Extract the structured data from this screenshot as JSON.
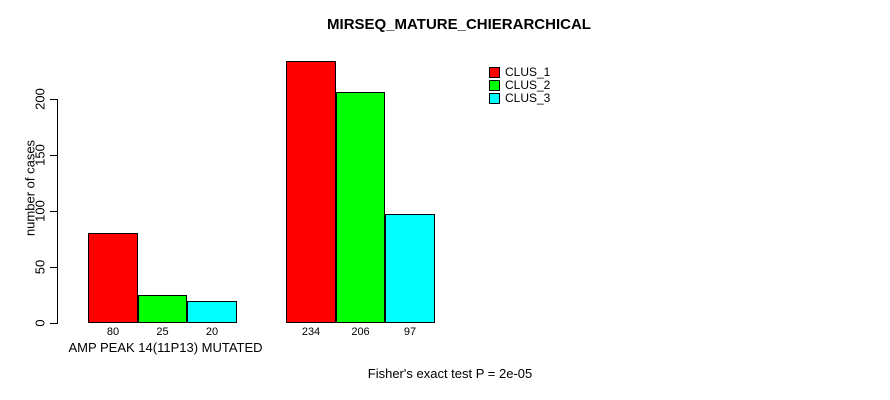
{
  "chart_data": {
    "type": "bar",
    "title": "MIRSEQ_MATURE_CHIERARCHICAL",
    "ylabel": "number of cases",
    "xlabel": "",
    "ylim": [
      0,
      240
    ],
    "yticks": [
      0,
      50,
      100,
      150,
      200
    ],
    "grid": false,
    "legend_position": "top-right",
    "categories": [
      "AMP PEAK 14(11P13) MUTATED",
      ""
    ],
    "series": [
      {
        "name": "CLUS_1",
        "color": "#FF0000",
        "values": [
          80,
          234
        ]
      },
      {
        "name": "CLUS_2",
        "color": "#00FF00",
        "values": [
          25,
          206
        ]
      },
      {
        "name": "CLUS_3",
        "color": "#00FFFF",
        "values": [
          20,
          97
        ]
      }
    ],
    "show_value_labels": true,
    "annotation": "Fisher's exact test P = 2e-05"
  }
}
